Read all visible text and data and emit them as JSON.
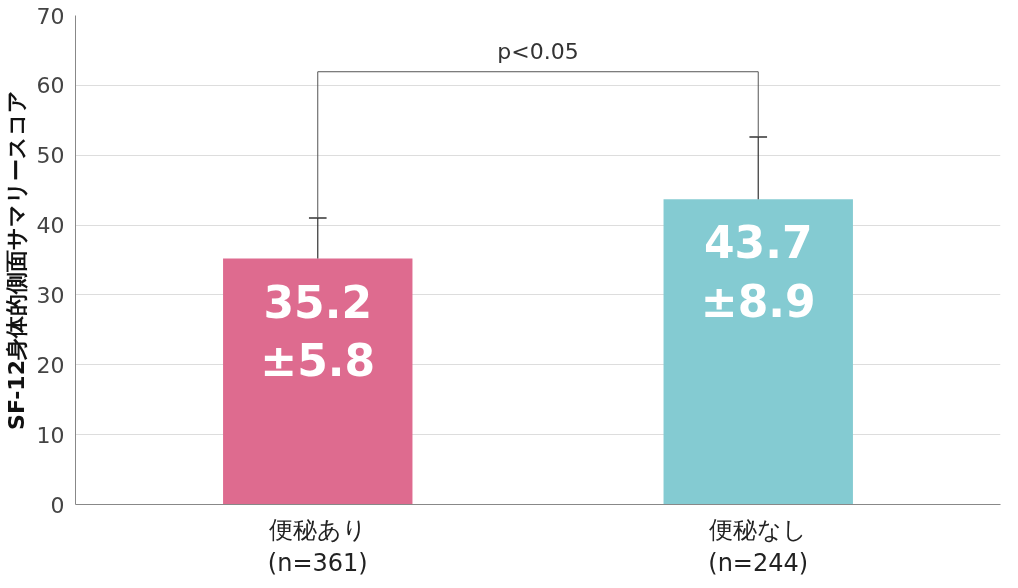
{
  "chart_data": {
    "type": "bar",
    "ylabel": "SF-12身体的側面サマリースコア",
    "categories": [
      "便秘あり\n(n=361)",
      "便秘なし\n(n=244)"
    ],
    "values": [
      35.2,
      43.7
    ],
    "colors": [
      "#de6b8f",
      "#84cbd2"
    ],
    "errors": [
      [
        35.2,
        41.0
      ],
      [
        43.7,
        52.6
      ]
    ],
    "value_labels": [
      "35.2\n±5.8",
      "43.7\n±8.9"
    ],
    "annotations": [
      "p<0.05"
    ],
    "ylim": [
      0,
      70
    ],
    "yticks": [
      0,
      10,
      20,
      30,
      40,
      50,
      60,
      70
    ],
    "grid": "y"
  }
}
